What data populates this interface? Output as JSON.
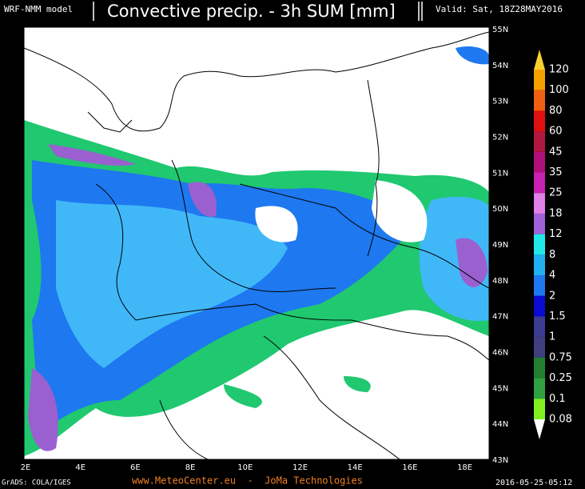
{
  "header": {
    "model": "WRF-NMM model",
    "title": "Convective precip. - 3h SUM [mm]",
    "valid": "Valid: Sat, 18Z28MAY2016"
  },
  "map": {
    "lat_labels": [
      "55N",
      "54N",
      "53N",
      "52N",
      "51N",
      "50N",
      "49N",
      "48N",
      "47N",
      "46N",
      "45N",
      "44N",
      "43N"
    ],
    "lon_labels": [
      "2E",
      "4E",
      "6E",
      "8E",
      "10E",
      "12E",
      "14E",
      "16E",
      "18E"
    ]
  },
  "legend": {
    "levels": [
      "120",
      "100",
      "80",
      "60",
      "45",
      "35",
      "25",
      "18",
      "12",
      "8",
      "4",
      "2",
      "1.5",
      "1",
      "0.75",
      "0.25",
      "0.1",
      "0.08"
    ]
  },
  "footer": {
    "credit": "GrADS: COLA/IGES",
    "site": "www.MeteoCenter.eu  -  JoMa Technologies",
    "timestamp": "2016-05-25-05:12"
  }
}
